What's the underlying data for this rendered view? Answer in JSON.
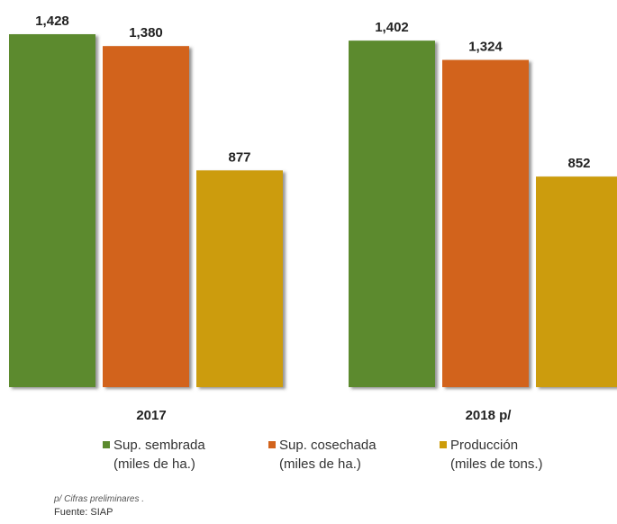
{
  "chart_data": {
    "type": "bar",
    "categories": [
      "2017",
      "2018 p/"
    ],
    "series": [
      {
        "name": "Sup. sembrada (miles de ha.)",
        "values": [
          1428,
          1402
        ],
        "color": "#5b8a2e",
        "legend_line1": "Sup. sembrada",
        "legend_line2": "(miles de ha.)"
      },
      {
        "name": "Sup. cosechada (miles de ha.)",
        "values": [
          1380,
          1324
        ],
        "color": "#d2631c",
        "legend_line1": "Sup. cosechada",
        "legend_line2": "(miles de ha.)"
      },
      {
        "name": "Producción (miles de tons.)",
        "values": [
          877,
          852
        ],
        "color": "#cc9c0a",
        "legend_line1": "Producción",
        "legend_line2": "(miles de tons.)"
      }
    ],
    "value_labels": [
      [
        "1,428",
        "1,402"
      ],
      [
        "1,380",
        "1,324"
      ],
      [
        "877",
        "852"
      ]
    ],
    "ylim": [
      0,
      1428
    ],
    "grid": false,
    "legend_position": "bottom"
  },
  "notes": {
    "preliminary": "p/ Cifras preliminares .",
    "source": "Fuente: SIAP"
  }
}
